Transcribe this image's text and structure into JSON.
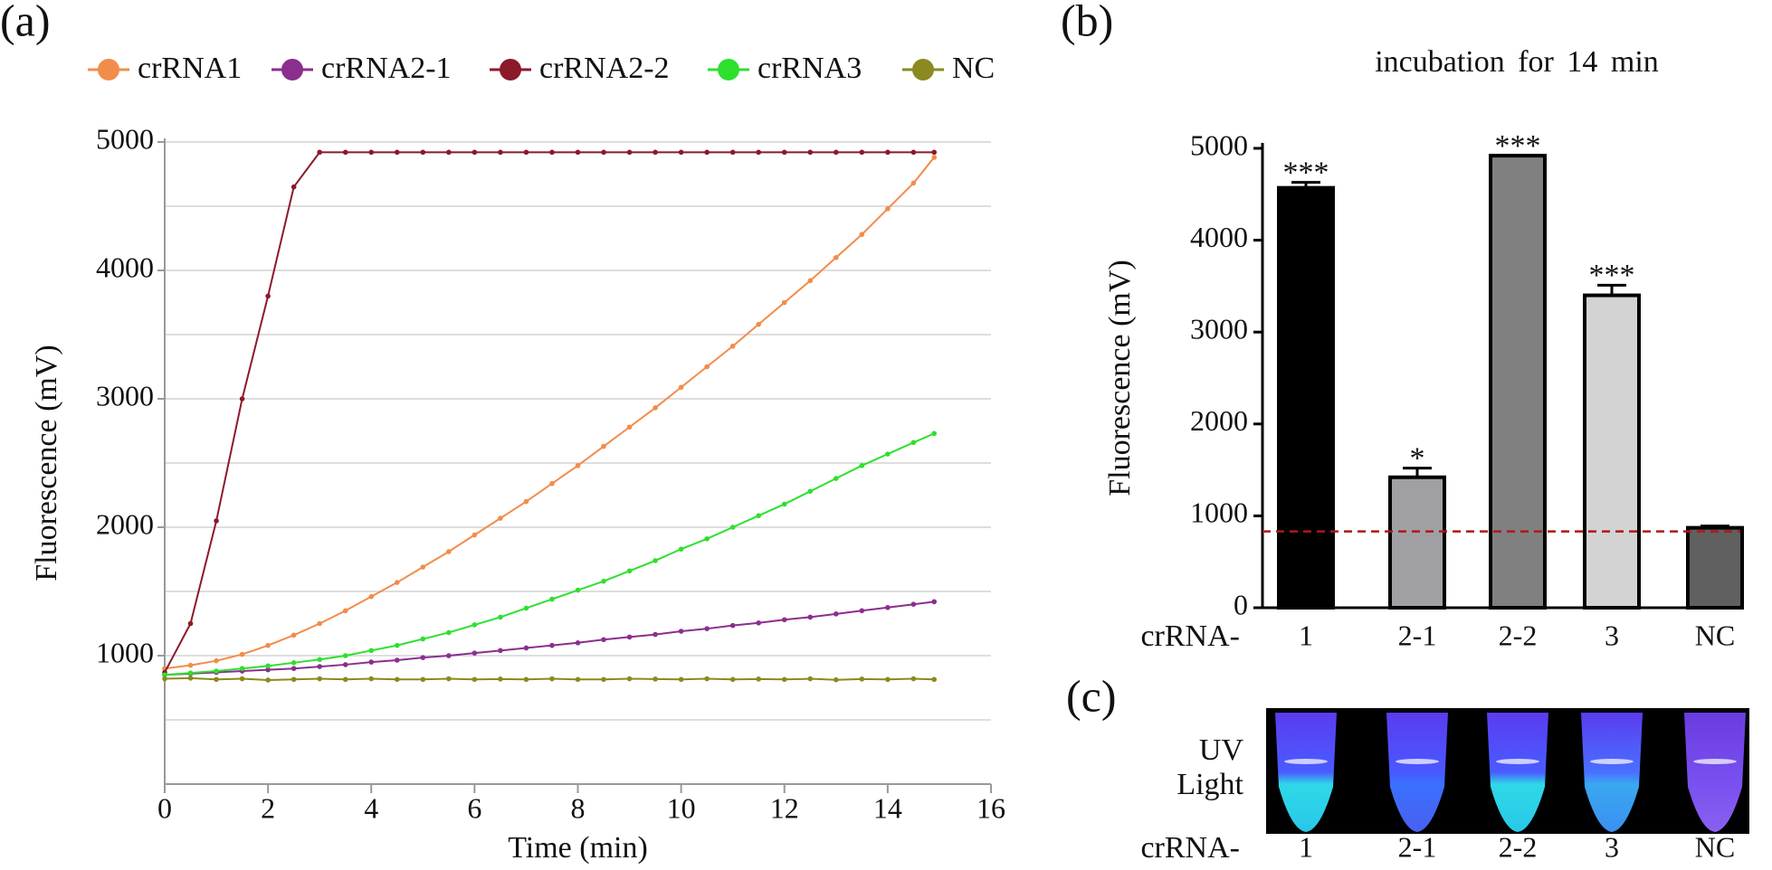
{
  "panel_labels": [
    "(a)",
    "(b)",
    "(c)"
  ],
  "chart_data": [
    {
      "type": "line",
      "xlabel": "Time (min)",
      "ylabel": "Fluorescence (mV)",
      "x": [
        0,
        0.5,
        1,
        1.5,
        2,
        2.5,
        3,
        3.5,
        4,
        4.5,
        5,
        5.5,
        6,
        6.5,
        7,
        7.5,
        8,
        8.5,
        9,
        9.5,
        10,
        10.5,
        11,
        11.5,
        12,
        12.5,
        13,
        13.5,
        14,
        14.5,
        14.9
      ],
      "xlim": [
        0,
        16
      ],
      "xticks": [
        0,
        2,
        4,
        6,
        8,
        10,
        12,
        14,
        16
      ],
      "ylim": [
        0,
        5000
      ],
      "yticks": [
        1000,
        2000,
        3000,
        4000,
        5000
      ],
      "ygrid": [
        500,
        1000,
        1500,
        2000,
        2500,
        3000,
        3500,
        4000,
        4500,
        5000
      ],
      "grid": true,
      "series": [
        {
          "name": "crRNA1",
          "color": "#f28c4a",
          "values": [
            900,
            925,
            960,
            1010,
            1080,
            1160,
            1250,
            1350,
            1460,
            1570,
            1690,
            1810,
            1940,
            2070,
            2200,
            2340,
            2480,
            2630,
            2780,
            2930,
            3090,
            3250,
            3410,
            3580,
            3750,
            3920,
            4100,
            4280,
            4480,
            4680,
            4880
          ]
        },
        {
          "name": "crRNA2-1",
          "color": "#8b2e8e",
          "values": [
            850,
            860,
            870,
            880,
            890,
            900,
            915,
            930,
            950,
            965,
            985,
            1000,
            1020,
            1040,
            1060,
            1080,
            1100,
            1125,
            1145,
            1165,
            1190,
            1210,
            1235,
            1255,
            1280,
            1300,
            1325,
            1350,
            1375,
            1400,
            1420
          ]
        },
        {
          "name": "crRNA2-2",
          "color": "#8b1a2a",
          "values": [
            870,
            1250,
            2050,
            3000,
            3800,
            4650,
            4920,
            4920,
            4920,
            4920,
            4920,
            4920,
            4920,
            4920,
            4920,
            4920,
            4920,
            4920,
            4920,
            4920,
            4920,
            4920,
            4920,
            4920,
            4920,
            4920,
            4920,
            4920,
            4920,
            4920,
            4920
          ]
        },
        {
          "name": "crRNA3",
          "color": "#2ee02e",
          "values": [
            850,
            865,
            880,
            900,
            920,
            945,
            970,
            1000,
            1040,
            1080,
            1130,
            1180,
            1240,
            1300,
            1370,
            1440,
            1510,
            1580,
            1660,
            1740,
            1830,
            1910,
            2000,
            2090,
            2180,
            2280,
            2380,
            2480,
            2570,
            2660,
            2730
          ]
        },
        {
          "name": "NC",
          "color": "#8a8a20",
          "values": [
            820,
            825,
            815,
            820,
            810,
            815,
            820,
            815,
            820,
            815,
            815,
            820,
            815,
            818,
            815,
            820,
            815,
            815,
            820,
            818,
            815,
            820,
            815,
            818,
            815,
            820,
            812,
            818,
            815,
            820,
            815
          ]
        }
      ]
    },
    {
      "type": "bar",
      "title": "incubation for 14 min",
      "ylabel": "Fluorescence (mV)",
      "xlabel": "crRNA-",
      "categories": [
        "1",
        "2-1",
        "2-2",
        "3",
        "NC"
      ],
      "values": [
        4570,
        1420,
        4920,
        3400,
        870
      ],
      "errors": [
        60,
        100,
        0,
        110,
        20
      ],
      "colors": [
        "#000000",
        "#a0a0a4",
        "#808080",
        "#d3d3d3",
        "#606060"
      ],
      "annotations": [
        "***",
        "*",
        "***",
        "***",
        null
      ],
      "threshold": 830,
      "threshold_color": "#b01818",
      "ylim": [
        0,
        5000
      ],
      "yticks": [
        0,
        1000,
        2000,
        3000,
        4000,
        5000
      ]
    }
  ],
  "photo": {
    "side_label": [
      "UV",
      "Light"
    ],
    "row_label": "crRNA-",
    "categories": [
      "1",
      "2-1",
      "2-2",
      "3",
      "NC"
    ]
  }
}
